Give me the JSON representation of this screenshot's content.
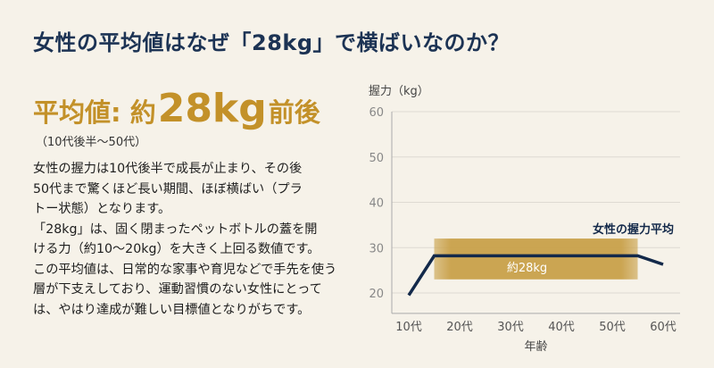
{
  "title": "女性の平均値はなぜ「28kg」で横ばいなのか？",
  "headline": {
    "prefix": "平均値: 約",
    "value": "28kg",
    "suffix": "前後"
  },
  "subtitle": "（10代後半〜50代）",
  "body_lines": [
    "女性の握力は10代後半で成長が止まり、その後",
    "50代まで驚くほど長い期間、ほぼ横ばい（プラ",
    "トー状態）となります。",
    "「28kg」は、固く閉まったペットボトルの蓋を開",
    "ける力（約10〜20kg）を大きく上回る数値です。",
    "この平均値は、日常的な家事や育児などで手先を使う",
    "層が下支えしており、運動習慣のない女性にとって",
    "は、やはり達成が難しい目標値となりがちです。"
  ],
  "colors": {
    "title": "#1c3354",
    "accent": "#c39129",
    "line": "#13294a",
    "band": "#c9a14a",
    "background": "#f6f2e9"
  },
  "chart_data": {
    "type": "line",
    "ylabel": "握力（kg）",
    "xlabel": "年齢",
    "ylim": [
      15.5,
      60
    ],
    "yticks": [
      20,
      30,
      40,
      50,
      60
    ],
    "xticks": [
      10,
      20,
      30,
      40,
      50,
      60
    ],
    "xtick_labels": [
      "10代",
      "20代",
      "30代",
      "40代",
      "50代",
      "60代"
    ],
    "grid": true,
    "series": [
      {
        "name": "女性の握力平均",
        "x": [
          10,
          15,
          55,
          60
        ],
        "y": [
          19.5,
          28.2,
          28.2,
          26.3
        ]
      }
    ],
    "band": {
      "label": "約28kg",
      "x": [
        15,
        55
      ],
      "y": [
        23,
        32
      ]
    }
  }
}
